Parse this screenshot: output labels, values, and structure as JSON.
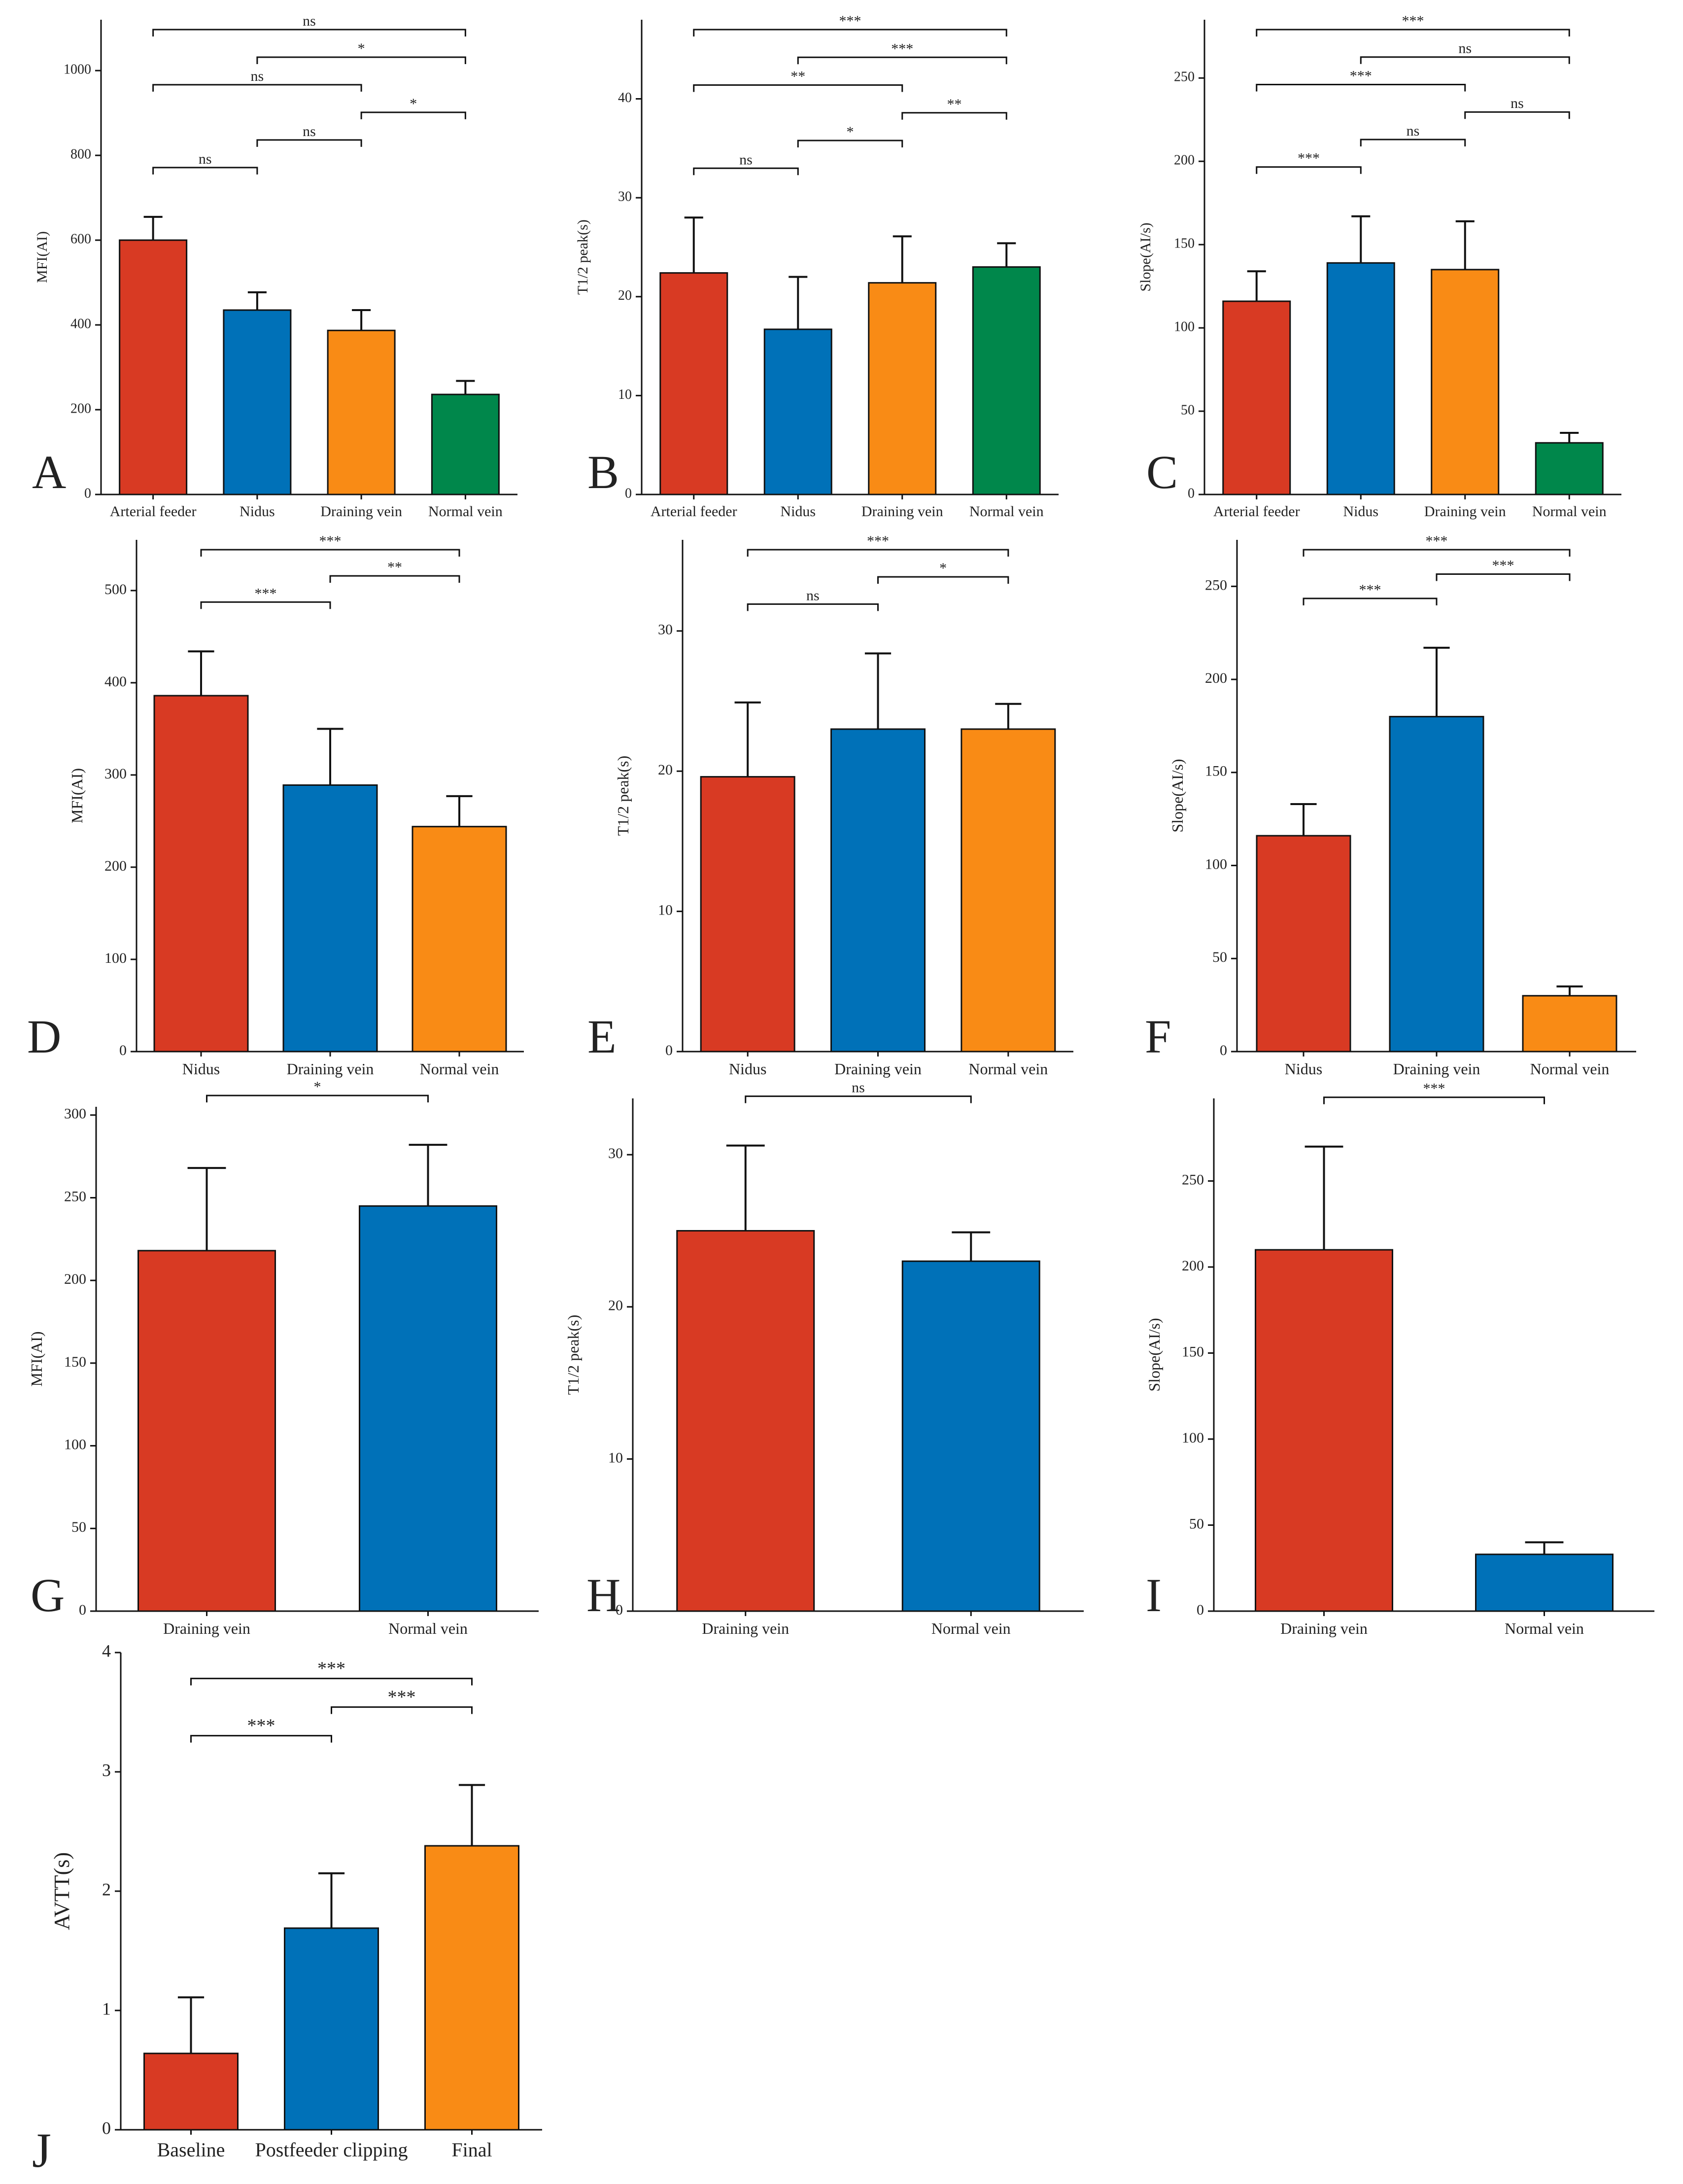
{
  "colors": {
    "red": "#d83a23",
    "blue": "#0071b8",
    "orange": "#f98b15",
    "green": "#00874b",
    "axis": "#111111"
  },
  "chart_data": [
    {
      "id": "A",
      "panel_label": "A",
      "type": "bar",
      "ylabel": "MFI(AI)",
      "ylim": [
        0,
        1120
      ],
      "yticks": [
        0,
        200,
        400,
        600,
        800,
        1000
      ],
      "categories": [
        "Arterial feeder",
        "Nidus",
        "Draining vein",
        "Normal vein"
      ],
      "values": [
        600,
        435,
        387,
        236
      ],
      "errors": [
        55,
        42,
        48,
        32
      ],
      "bar_colors": [
        "red",
        "blue",
        "orange",
        "green"
      ],
      "comparisons": [
        {
          "from": 0,
          "to": 1,
          "label": "ns"
        },
        {
          "from": 0,
          "to": 2,
          "label": "ns"
        },
        {
          "from": 0,
          "to": 3,
          "label": "ns"
        },
        {
          "from": 1,
          "to": 2,
          "label": "ns"
        },
        {
          "from": 1,
          "to": 3,
          "label": "*"
        },
        {
          "from": 2,
          "to": 3,
          "label": "*"
        }
      ]
    },
    {
      "id": "B",
      "panel_label": "B",
      "type": "bar",
      "ylabel": "T1/2 peak(s)",
      "ylim": [
        0,
        48
      ],
      "yticks": [
        0,
        10,
        20,
        30,
        40
      ],
      "categories": [
        "Arterial feeder",
        "Nidus",
        "Draining vein",
        "Normal vein"
      ],
      "values": [
        22.4,
        16.7,
        21.4,
        23.0
      ],
      "errors": [
        5.6,
        5.3,
        4.7,
        2.4
      ],
      "bar_colors": [
        "red",
        "blue",
        "orange",
        "green"
      ],
      "comparisons": [
        {
          "from": 0,
          "to": 1,
          "label": "ns"
        },
        {
          "from": 0,
          "to": 2,
          "label": "**"
        },
        {
          "from": 0,
          "to": 3,
          "label": "***"
        },
        {
          "from": 1,
          "to": 2,
          "label": "*"
        },
        {
          "from": 1,
          "to": 3,
          "label": "***"
        },
        {
          "from": 2,
          "to": 3,
          "label": "**"
        }
      ]
    },
    {
      "id": "C",
      "panel_label": "C",
      "type": "bar",
      "ylabel": "Slope(AI/s)",
      "ylim": [
        0,
        285
      ],
      "yticks": [
        0,
        50,
        100,
        150,
        200,
        250
      ],
      "categories": [
        "Arterial feeder",
        "Nidus",
        "Draining vein",
        "Normal vein"
      ],
      "values": [
        116,
        139,
        135,
        31
      ],
      "errors": [
        18,
        28,
        29,
        6
      ],
      "bar_colors": [
        "red",
        "blue",
        "orange",
        "green"
      ],
      "comparisons": [
        {
          "from": 0,
          "to": 1,
          "label": "***"
        },
        {
          "from": 0,
          "to": 2,
          "label": "***"
        },
        {
          "from": 0,
          "to": 3,
          "label": "***"
        },
        {
          "from": 1,
          "to": 2,
          "label": "ns"
        },
        {
          "from": 1,
          "to": 3,
          "label": "ns"
        },
        {
          "from": 2,
          "to": 3,
          "label": "ns"
        }
      ]
    },
    {
      "id": "D",
      "panel_label": "D",
      "type": "bar",
      "ylabel": "MFI(AI)",
      "ylim": [
        0,
        555
      ],
      "yticks": [
        0,
        100,
        200,
        300,
        400,
        500
      ],
      "categories": [
        "Nidus",
        "Draining vein",
        "Normal vein"
      ],
      "values": [
        386,
        289,
        244
      ],
      "errors": [
        48,
        61,
        33
      ],
      "bar_colors": [
        "red",
        "blue",
        "orange"
      ],
      "comparisons": [
        {
          "from": 0,
          "to": 1,
          "label": "***"
        },
        {
          "from": 0,
          "to": 2,
          "label": "***"
        },
        {
          "from": 1,
          "to": 2,
          "label": "**"
        }
      ]
    },
    {
      "id": "E",
      "panel_label": "E",
      "type": "bar",
      "ylabel": "T1/2 peak(s)",
      "ylim": [
        0,
        36.5
      ],
      "yticks": [
        0,
        10,
        20,
        30
      ],
      "categories": [
        "Nidus",
        "Draining vein",
        "Normal vein"
      ],
      "values": [
        19.6,
        23.0,
        23.0
      ],
      "errors": [
        5.3,
        5.4,
        1.8
      ],
      "bar_colors": [
        "red",
        "blue",
        "orange"
      ],
      "comparisons": [
        {
          "from": 0,
          "to": 1,
          "label": "ns"
        },
        {
          "from": 0,
          "to": 2,
          "label": "***"
        },
        {
          "from": 1,
          "to": 2,
          "label": "*"
        }
      ]
    },
    {
      "id": "F",
      "panel_label": "F",
      "type": "bar",
      "ylabel": "Slope(AI/s)",
      "ylim": [
        0,
        275
      ],
      "yticks": [
        0,
        50,
        100,
        150,
        200,
        250
      ],
      "categories": [
        "Nidus",
        "Draining vein",
        "Normal vein"
      ],
      "values": [
        116,
        180,
        30
      ],
      "errors": [
        17,
        37,
        5
      ],
      "bar_colors": [
        "red",
        "blue",
        "orange"
      ],
      "comparisons": [
        {
          "from": 0,
          "to": 1,
          "label": "***"
        },
        {
          "from": 0,
          "to": 2,
          "label": "***"
        },
        {
          "from": 1,
          "to": 2,
          "label": "***"
        }
      ]
    },
    {
      "id": "G",
      "panel_label": "G",
      "type": "bar",
      "ylabel": "MFI(AI)",
      "ylim": [
        0,
        305
      ],
      "yticks": [
        0,
        50,
        100,
        150,
        200,
        250,
        300
      ],
      "categories": [
        "Draining vein",
        "Normal vein"
      ],
      "values": [
        218,
        245
      ],
      "errors": [
        50,
        37
      ],
      "bar_colors": [
        "red",
        "blue"
      ],
      "comparisons": [
        {
          "from": 0,
          "to": 1,
          "label": "*"
        }
      ]
    },
    {
      "id": "H",
      "panel_label": "H",
      "type": "bar",
      "ylabel": "T1/2 peak(s)",
      "ylim": [
        0,
        33.7
      ],
      "yticks": [
        0,
        10,
        20,
        30
      ],
      "categories": [
        "Draining vein",
        "Normal vein"
      ],
      "values": [
        25.0,
        23.0
      ],
      "errors": [
        5.6,
        1.9
      ],
      "bar_colors": [
        "red",
        "blue"
      ],
      "comparisons": [
        {
          "from": 0,
          "to": 1,
          "label": "ns"
        }
      ]
    },
    {
      "id": "I",
      "panel_label": "I",
      "type": "bar",
      "ylabel": "Slope(AI/s)",
      "ylim": [
        0,
        298
      ],
      "yticks": [
        0,
        50,
        100,
        150,
        200,
        250
      ],
      "categories": [
        "Draining vein",
        "Normal vein"
      ],
      "values": [
        210,
        33
      ],
      "errors": [
        60,
        7
      ],
      "bar_colors": [
        "red",
        "blue"
      ],
      "comparisons": [
        {
          "from": 0,
          "to": 1,
          "label": "***"
        }
      ]
    },
    {
      "id": "J",
      "panel_label": "J",
      "type": "bar",
      "ylabel": "AVTT(s)",
      "ylim": [
        0,
        4
      ],
      "yticks": [
        0,
        1,
        2,
        3,
        4
      ],
      "categories": [
        "Baseline",
        "Postfeeder clipping",
        "Final"
      ],
      "values": [
        0.64,
        1.69,
        2.38
      ],
      "errors": [
        0.47,
        0.46,
        0.51
      ],
      "bar_colors": [
        "red",
        "blue",
        "orange"
      ],
      "comparisons": [
        {
          "from": 0,
          "to": 1,
          "label": "***"
        },
        {
          "from": 0,
          "to": 2,
          "label": "***"
        },
        {
          "from": 1,
          "to": 2,
          "label": "***"
        }
      ]
    }
  ]
}
